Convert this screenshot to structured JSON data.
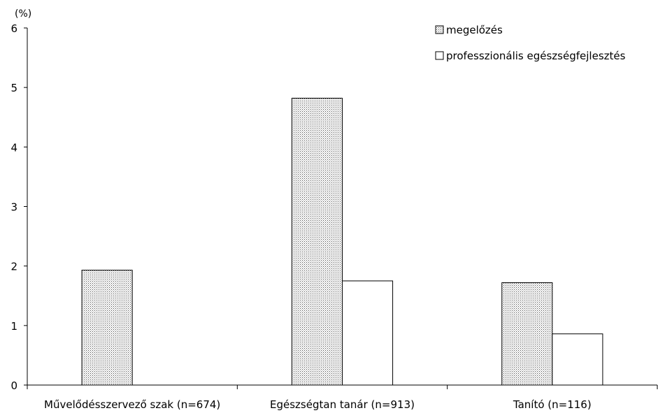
{
  "chart_data": {
    "type": "bar",
    "ylabel": "(%)",
    "ylim": [
      0,
      6
    ],
    "yticks": [
      "0",
      "1",
      "2",
      "3",
      "4",
      "5",
      "6"
    ],
    "categories": [
      "Művelődésszervező szak (n=674)",
      "Egészségtan tanár (n=913)",
      "Tanító (n=116)"
    ],
    "series": [
      {
        "name": "megelőzés",
        "values": [
          1.93,
          4.82,
          1.72
        ],
        "pattern": "dotted",
        "color": "#000000"
      },
      {
        "name": "professzionális egészségfejlesztés",
        "values": [
          0,
          1.75,
          0.86
        ],
        "pattern": "none",
        "color": "#ffffff"
      }
    ],
    "grid": false,
    "legend": "top-right"
  }
}
